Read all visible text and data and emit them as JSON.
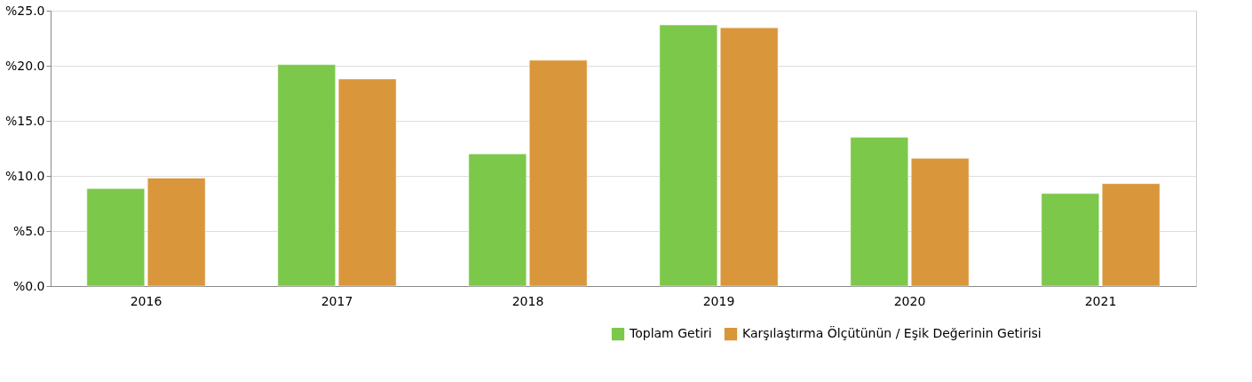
{
  "chart_data": {
    "type": "bar",
    "categories": [
      "2016",
      "2017",
      "2018",
      "2019",
      "2020",
      "2021"
    ],
    "series": [
      {
        "name": "Toplam Getiri",
        "color": "#7cc84a",
        "values": [
          8.85,
          20.1,
          12.0,
          23.7,
          13.5,
          8.4
        ]
      },
      {
        "name": "Karşılaştırma Ölçütünün / Eşik Değerinin Getirisi",
        "color": "#d9963a",
        "values": [
          9.8,
          18.8,
          20.5,
          23.45,
          11.6,
          9.3
        ]
      }
    ],
    "ylim": [
      0,
      25
    ],
    "yticks": [
      {
        "value": 0,
        "label": "%0.0"
      },
      {
        "value": 5,
        "label": "%5.0"
      },
      {
        "value": 10,
        "label": "%10.0"
      },
      {
        "value": 15,
        "label": "%15.0"
      },
      {
        "value": 20,
        "label": "%20.0"
      },
      {
        "value": 25,
        "label": "%25.0"
      }
    ],
    "grid": "y",
    "legend": "bottom right"
  }
}
